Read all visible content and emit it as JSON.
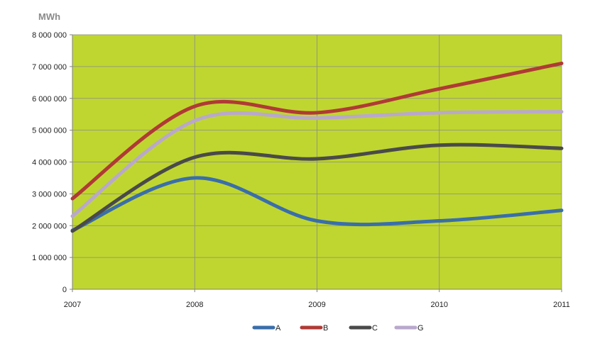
{
  "chart_data": {
    "type": "line",
    "unit_label": "MWh",
    "x": [
      "2007",
      "2008",
      "2009",
      "2010",
      "2011"
    ],
    "y_ticks": [
      "0",
      "1 000 000",
      "2 000 000",
      "3 000 000",
      "4 000 000",
      "5 000 000",
      "6 000 000",
      "7 000 000",
      "8 000 000"
    ],
    "ylim": [
      0,
      8000000
    ],
    "grid": "vertical and horizontal",
    "smoothed": true,
    "plot_background": "#BFD630",
    "legend_position": "bottom",
    "series": [
      {
        "name": "A",
        "color": "#3A6EAA",
        "values": [
          1850000,
          3500000,
          2150000,
          2150000,
          2480000
        ]
      },
      {
        "name": "B",
        "color": "#B03A36",
        "values": [
          2850000,
          5750000,
          5550000,
          6300000,
          7100000
        ]
      },
      {
        "name": "C",
        "color": "#4A4A4A",
        "values": [
          1830000,
          4150000,
          4100000,
          4530000,
          4430000
        ]
      },
      {
        "name": "G",
        "color": "#B9A8CC",
        "values": [
          2300000,
          5300000,
          5380000,
          5550000,
          5580000
        ]
      }
    ]
  }
}
